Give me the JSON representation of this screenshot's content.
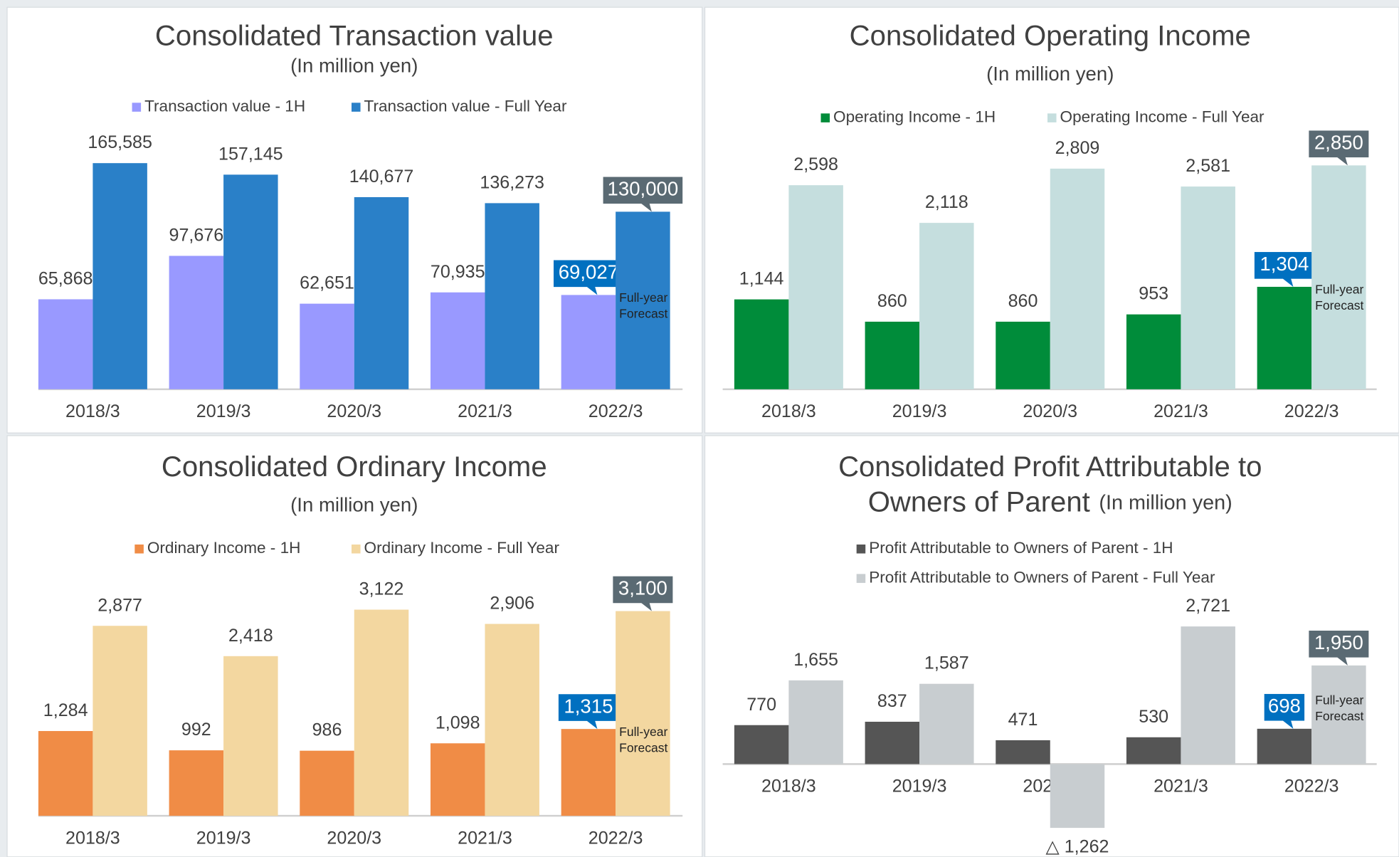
{
  "chart_data": [
    {
      "type": "bar",
      "title": "Consolidated Transaction value",
      "subtitle": "(In million yen)",
      "categories": [
        "2018/3",
        "2019/3",
        "2020/3",
        "2021/3",
        "2022/3"
      ],
      "series": [
        {
          "name": "Transaction value - 1H",
          "color": "#9999ff",
          "values": [
            65868,
            97676,
            62651,
            70935,
            69027
          ],
          "value_labels": [
            "65,868",
            "97,676",
            "62,651",
            "70,935",
            "69,027"
          ]
        },
        {
          "name": "Transaction value - Full Year",
          "color": "#2a80c8",
          "values": [
            165585,
            157145,
            140677,
            136273,
            130000
          ],
          "value_labels": [
            "165,585",
            "157,145",
            "140,677",
            "136,273",
            "130,000"
          ]
        }
      ],
      "ylim": [
        0,
        200000
      ],
      "annotation": [
        "Full-year",
        "Forecast"
      ]
    },
    {
      "type": "bar",
      "title": "Consolidated Operating Income",
      "subtitle": "(In million yen)",
      "categories": [
        "2018/3",
        "2019/3",
        "2020/3",
        "2021/3",
        "2022/3"
      ],
      "series": [
        {
          "name": "Operating Income - 1H",
          "color": "#008c3a",
          "values": [
            1144,
            860,
            860,
            953,
            1304
          ],
          "value_labels": [
            "1,144",
            "860",
            "860",
            "953",
            "1,304"
          ]
        },
        {
          "name": "Operating Income - Full Year",
          "color": "#c5dede",
          "values": [
            2598,
            2118,
            2809,
            2581,
            2850
          ],
          "value_labels": [
            "2,598",
            "2,118",
            "2,809",
            "2,581",
            "2,850"
          ]
        }
      ],
      "ylim": [
        0,
        3000
      ],
      "annotation": [
        "Full-year",
        "Forecast"
      ]
    },
    {
      "type": "bar",
      "title": "Consolidated Ordinary Income",
      "subtitle": "(In million yen)",
      "categories": [
        "2018/3",
        "2019/3",
        "2020/3",
        "2021/3",
        "2022/3"
      ],
      "series": [
        {
          "name": "Ordinary Income - 1H",
          "color": "#f08c46",
          "values": [
            1284,
            992,
            986,
            1098,
            1315
          ],
          "value_labels": [
            "1,284",
            "992",
            "986",
            "1,098",
            "1,315"
          ]
        },
        {
          "name": "Ordinary Income - Full Year",
          "color": "#f3d7a0",
          "values": [
            2877,
            2418,
            3122,
            2906,
            3100
          ],
          "value_labels": [
            "2,877",
            "2,418",
            "3,122",
            "2,906",
            "3,100"
          ]
        }
      ],
      "ylim": [
        0,
        3500
      ],
      "annotation": [
        "Full-year",
        "Forecast"
      ]
    },
    {
      "type": "bar",
      "title": [
        "Consolidated Profit Attributable to",
        "Owners of Parent"
      ],
      "subtitle": "(In million yen)",
      "categories": [
        "2018/3",
        "2019/3",
        "2020/3",
        "2021/3",
        "2022/3"
      ],
      "series": [
        {
          "name": "Profit Attributable to Owners of Parent - 1H",
          "color": "#555555",
          "values": [
            770,
            837,
            471,
            530,
            698
          ],
          "value_labels": [
            "770",
            "837",
            "471",
            "530",
            "698"
          ]
        },
        {
          "name": "Profit Attributable to Owners of Parent - Full Year",
          "color": "#c8cdd0",
          "values": [
            1655,
            1587,
            -1262,
            2721,
            1950
          ],
          "value_labels": [
            "1,655",
            "1,587",
            "△ 1,262",
            "2,721",
            "1,950"
          ]
        }
      ],
      "ylim": [
        -1500,
        3000
      ],
      "annotation": [
        "Full-year",
        "Forecast"
      ]
    }
  ]
}
